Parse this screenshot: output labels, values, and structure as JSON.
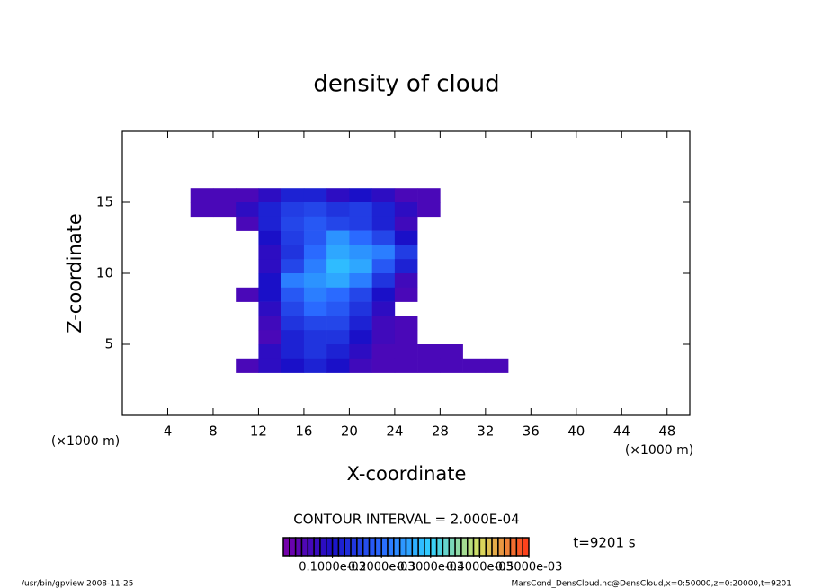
{
  "chart_data": {
    "type": "heatmap",
    "title": "density of cloud",
    "x_label": "X-coordinate",
    "y_label": "Z-coordinate",
    "x_unit": "(×1000 m)",
    "y_unit": "(×1000 m)",
    "contour_interval": "CONTOUR INTERVAL = 2.000E-04",
    "time_label": "t=9201 s",
    "footer_left": "/usr/bin/gpview  2008-11-25",
    "footer_right": "MarsCond_DensCloud.nc@DensCloud,x=0:50000,z=0:20000,t=9201",
    "xlim": [
      0,
      50
    ],
    "ylim": [
      0,
      20
    ],
    "xticks": [
      4,
      8,
      12,
      16,
      20,
      24,
      28,
      32,
      36,
      40,
      44,
      48
    ],
    "yticks": [
      5,
      10,
      15
    ],
    "grid": false,
    "x": [
      7,
      9,
      11,
      13,
      15,
      17,
      19,
      21,
      23,
      25,
      27,
      29,
      31,
      33,
      35
    ],
    "y": [
      15.5,
      14.5,
      13.5,
      12.5,
      11.5,
      10.5,
      9.5,
      8.5,
      7.5,
      6.5,
      5.5,
      4.5,
      3.5
    ],
    "z": [
      [
        5e-05,
        5e-05,
        5e-05,
        8e-05,
        0.00012,
        0.00012,
        8e-05,
        0.0001,
        8e-05,
        5e-05,
        5e-05,
        null,
        null,
        null,
        null
      ],
      [
        5e-05,
        5e-05,
        8e-05,
        0.00012,
        0.00015,
        0.00016,
        0.00014,
        0.00015,
        0.00012,
        8e-05,
        5e-05,
        null,
        null,
        null,
        null
      ],
      [
        null,
        null,
        5e-05,
        0.00012,
        0.00016,
        0.00018,
        0.00016,
        0.00015,
        0.00012,
        6e-05,
        null,
        null,
        null,
        null,
        null
      ],
      [
        null,
        null,
        null,
        0.0001,
        0.00015,
        0.00018,
        0.00024,
        0.0002,
        0.00016,
        0.0001,
        null,
        null,
        null,
        null,
        null
      ],
      [
        null,
        null,
        null,
        8e-05,
        0.00014,
        0.0002,
        0.00026,
        0.00024,
        0.00022,
        0.00015,
        null,
        null,
        null,
        null,
        null
      ],
      [
        null,
        null,
        null,
        8e-05,
        0.00016,
        0.00022,
        0.00028,
        0.00026,
        0.00018,
        0.00012,
        null,
        null,
        null,
        null,
        null
      ],
      [
        null,
        null,
        null,
        0.0001,
        0.00022,
        0.00024,
        0.00026,
        0.00022,
        0.00014,
        6e-05,
        null,
        null,
        null,
        null,
        null
      ],
      [
        null,
        null,
        5e-05,
        0.0001,
        0.00018,
        0.00022,
        0.0002,
        0.00016,
        0.0001,
        5e-05,
        null,
        null,
        null,
        null,
        null
      ],
      [
        null,
        null,
        null,
        8e-05,
        0.00016,
        0.0002,
        0.00018,
        0.00014,
        8e-05,
        null,
        null,
        null,
        null,
        null,
        null
      ],
      [
        null,
        null,
        null,
        6e-05,
        0.00014,
        0.00016,
        0.00016,
        0.00012,
        6e-05,
        5e-05,
        null,
        null,
        null,
        null,
        null
      ],
      [
        null,
        null,
        null,
        5e-05,
        0.00012,
        0.00014,
        0.00014,
        0.0001,
        6e-05,
        5e-05,
        null,
        null,
        null,
        null,
        null
      ],
      [
        null,
        null,
        null,
        8e-05,
        0.00012,
        0.00014,
        0.00012,
        8e-05,
        5e-05,
        5e-05,
        5e-05,
        5e-05,
        null,
        null,
        null
      ],
      [
        null,
        null,
        5e-05,
        8e-05,
        0.0001,
        0.00012,
        0.0001,
        6e-05,
        5e-05,
        5e-05,
        5e-05,
        5e-05,
        5e-05,
        5e-05,
        null
      ]
    ],
    "clim": [
      0,
      0.0005
    ],
    "colorscale": [
      {
        "value": 0,
        "color": "#7a00a8"
      },
      {
        "value": 0.0001,
        "color": "#1a10c8"
      },
      {
        "value": 0.0002,
        "color": "#2a6aff"
      },
      {
        "value": 0.0003,
        "color": "#30d0ff"
      },
      {
        "value": 0.0004,
        "color": "#d8e060"
      },
      {
        "value": 0.0005,
        "color": "#ff3818"
      }
    ],
    "cticks": [
      {
        "value": 0.0001,
        "label": "0.1000e-03"
      },
      {
        "value": 0.0002,
        "label": "0.2000e-03"
      },
      {
        "value": 0.0003,
        "label": "0.3000e-03"
      },
      {
        "value": 0.0004,
        "label": "0.4000e-03"
      },
      {
        "value": 0.0005,
        "label": "0.5000e-03"
      }
    ]
  }
}
